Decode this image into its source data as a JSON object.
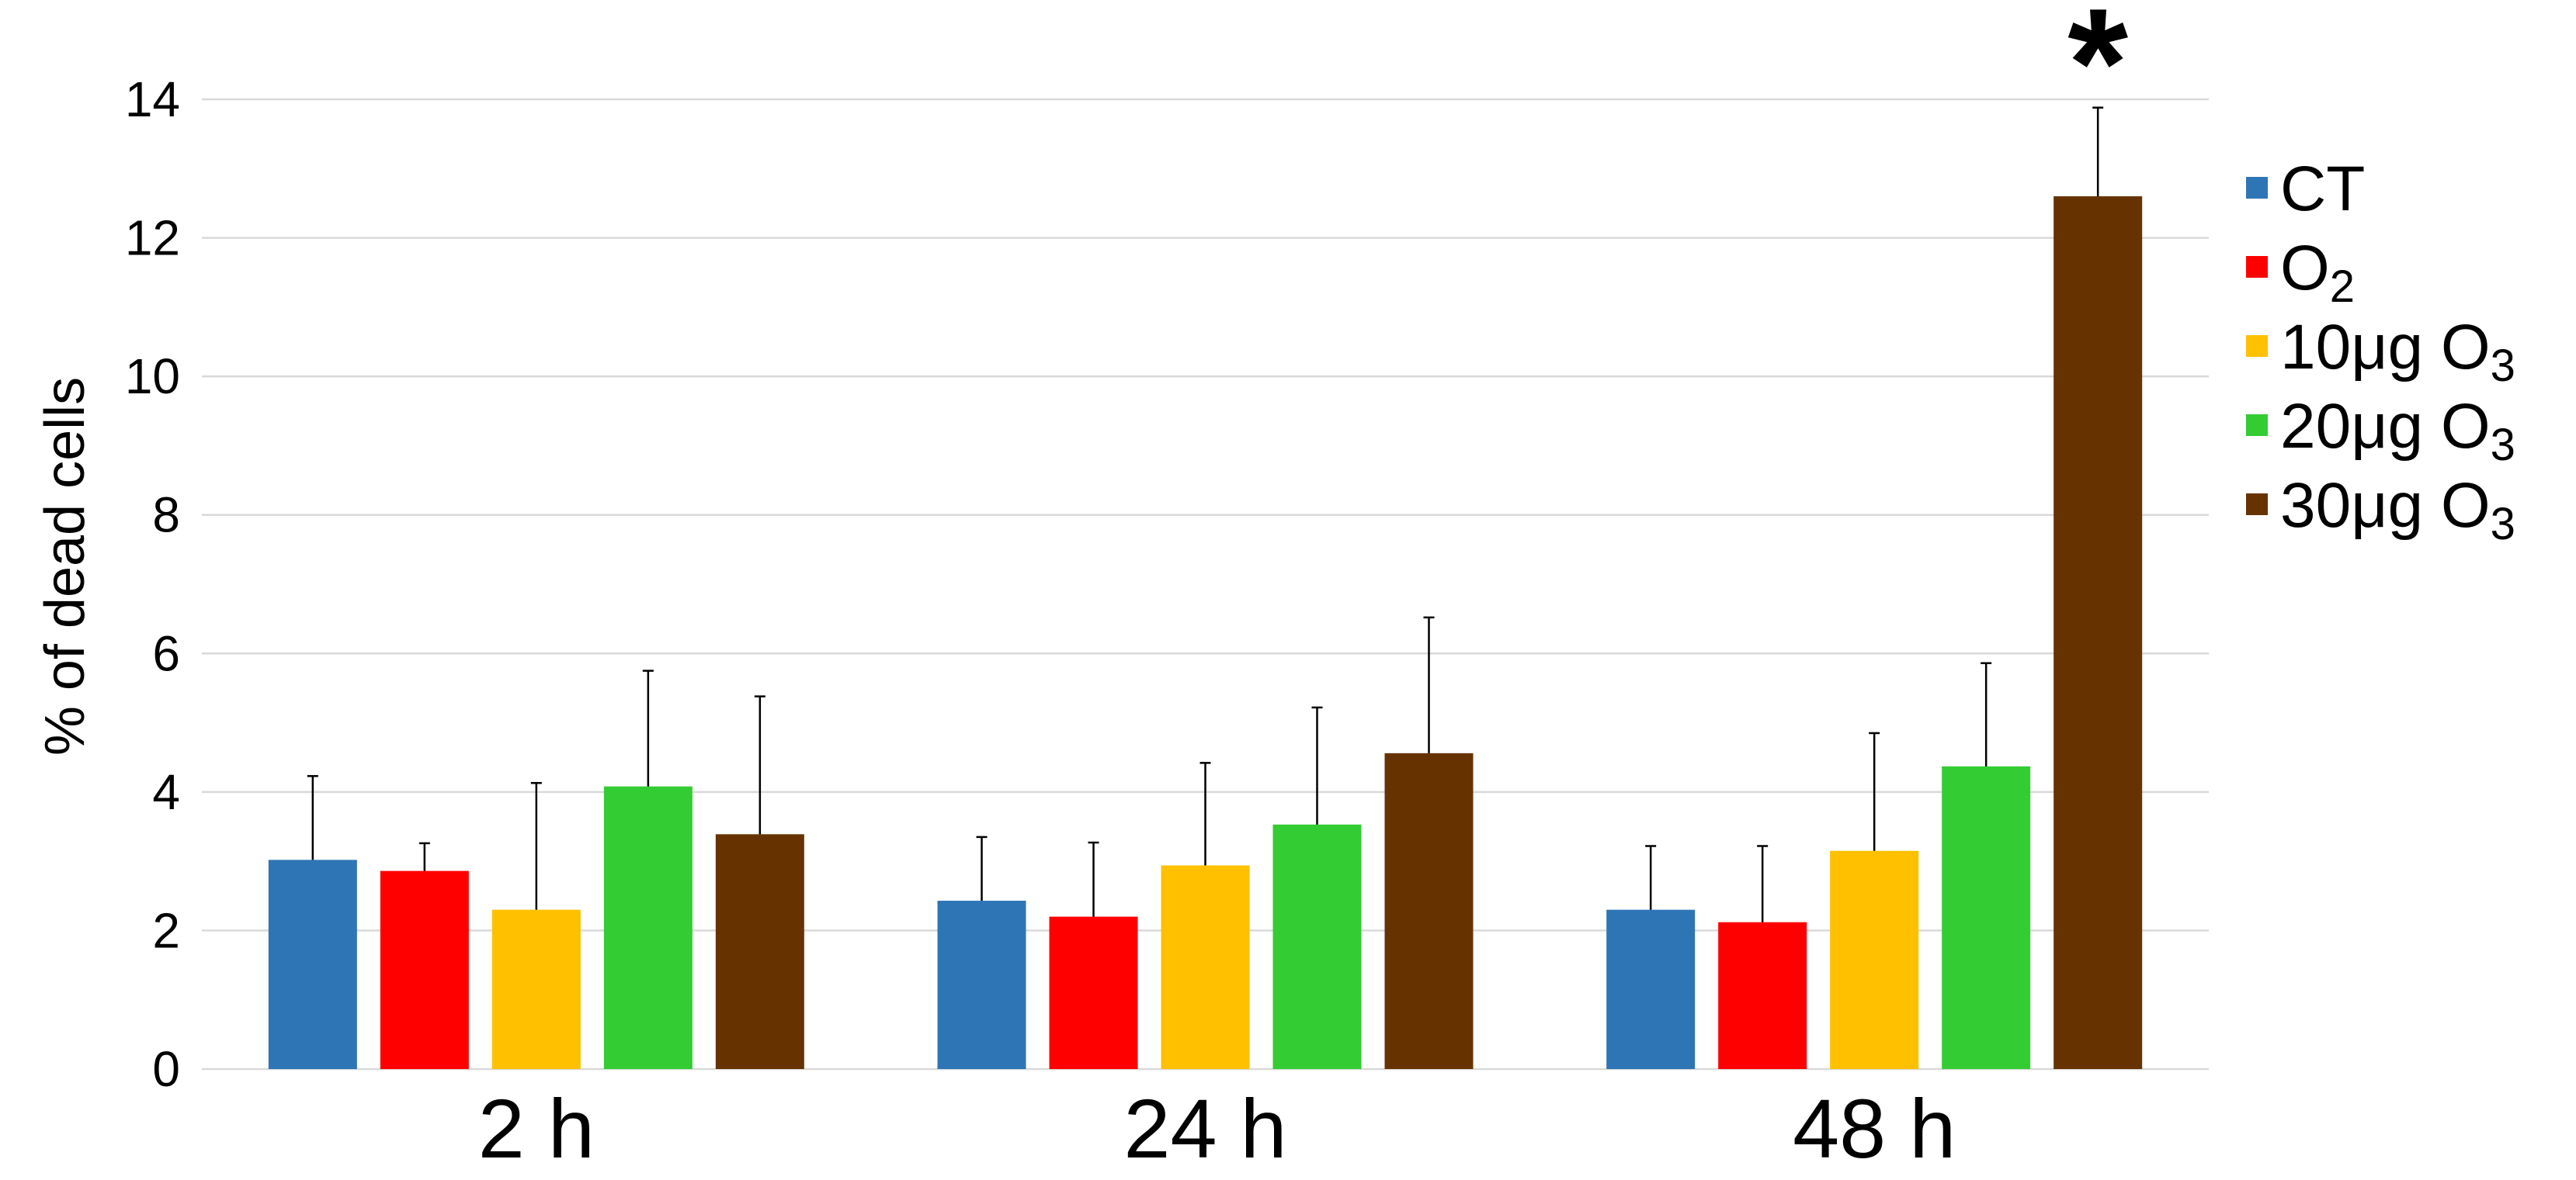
{
  "chart_data": {
    "type": "bar",
    "title": "",
    "xlabel": "",
    "ylabel": "% of dead cells",
    "ylim": [
      0,
      14
    ],
    "yticks": [
      "0",
      "2",
      "4",
      "6",
      "8",
      "10",
      "12",
      "14"
    ],
    "grid": "horizontal",
    "legend_position": "right",
    "categories": [
      "2 h",
      "24 h",
      "48 h"
    ],
    "series": [
      {
        "name": "CT",
        "label_main": "CT",
        "label_sub": "",
        "color": "#2E75B6",
        "values": [
          3.02,
          2.43,
          2.3
        ],
        "errors": [
          1.21,
          0.92,
          0.92
        ]
      },
      {
        "name": "O2",
        "label_main": "O",
        "label_sub": "2",
        "color": "#FF0000",
        "values": [
          2.86,
          2.2,
          2.12
        ],
        "errors": [
          0.4,
          1.07,
          1.1
        ]
      },
      {
        "name": "10μg O3",
        "label_main": "10μg O",
        "label_sub": "3",
        "color": "#FFC000",
        "values": [
          2.3,
          2.94,
          3.15
        ],
        "errors": [
          1.83,
          1.48,
          1.7
        ]
      },
      {
        "name": "20μg O3",
        "label_main": "20μg O",
        "label_sub": "3",
        "color": "#33CC33",
        "values": [
          4.08,
          3.53,
          4.37
        ],
        "errors": [
          1.67,
          1.69,
          1.49
        ]
      },
      {
        "name": "30μg O3",
        "label_main": "30μg O",
        "label_sub": "3",
        "color": "#663300",
        "values": [
          3.39,
          4.56,
          12.6
        ],
        "errors": [
          1.99,
          1.96,
          1.28
        ]
      }
    ],
    "annotations": [
      {
        "text": "*",
        "category": "48 h",
        "series": "30μg O3"
      }
    ]
  }
}
